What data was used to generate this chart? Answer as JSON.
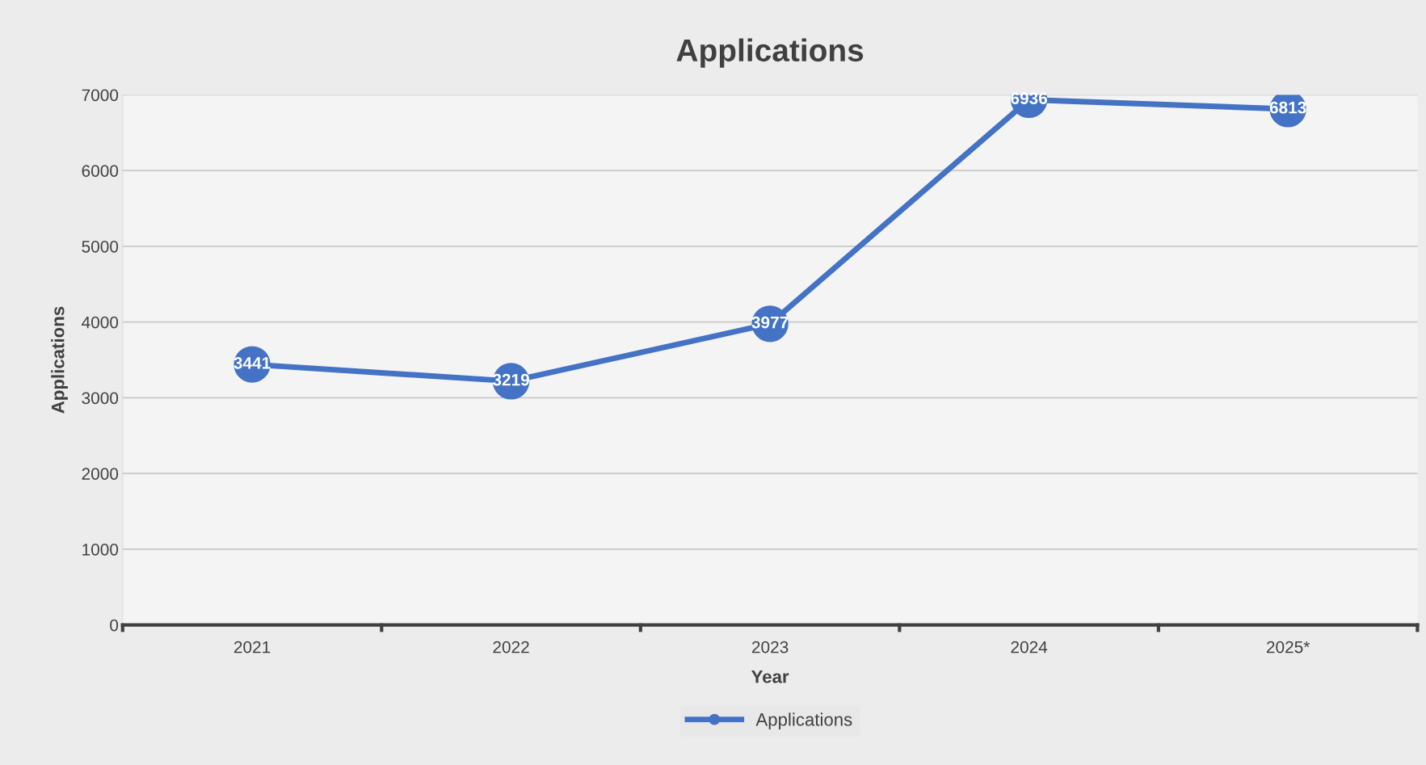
{
  "chart_data": {
    "type": "line",
    "title": "Applications",
    "xlabel": "Year",
    "ylabel": "Applications",
    "categories": [
      "2021",
      "2022",
      "2023",
      "2024",
      "2025*"
    ],
    "series": [
      {
        "name": "Applications",
        "color": "#4472c4",
        "values": [
          3441,
          3219,
          3977,
          6936,
          6813
        ]
      }
    ],
    "ylim": [
      0,
      7000
    ],
    "yticks": [
      0,
      1000,
      2000,
      3000,
      4000,
      5000,
      6000,
      7000
    ],
    "grid": "y",
    "legend": "bottom",
    "marker": "circle",
    "line_style": "solid",
    "data_labels": true
  }
}
